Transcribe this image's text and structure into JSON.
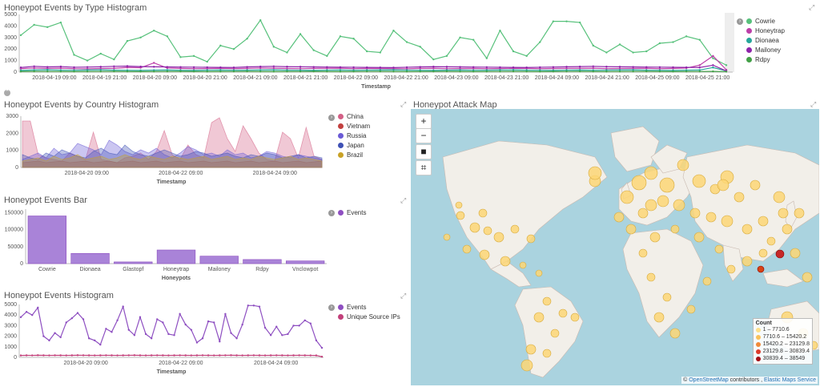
{
  "panels": {
    "type_hist": {
      "title": "Honeypot Events by Type Histogram",
      "xlabel": "Timestamp",
      "yticks": [
        "5000",
        "4000",
        "3000",
        "2000",
        "1000",
        "0"
      ],
      "xticks": [
        "2018-04-19 09:00",
        "2018-04-19 21:00",
        "2018-04-20 09:00",
        "2018-04-20 21:00",
        "2018-04-21 09:00",
        "2018-04-21 21:00",
        "2018-04-22 09:00",
        "2018-04-22 21:00",
        "2018-04-23 09:00",
        "2018-04-23 21:00",
        "2018-04-24 09:00",
        "2018-04-24 21:00",
        "2018-04-25 09:00",
        "2018-04-25 21:00"
      ],
      "legend": [
        {
          "label": "Cowrie",
          "color": "#57c17b"
        },
        {
          "label": "Honeytrap",
          "color": "#bc3ea8"
        },
        {
          "label": "Dionaea",
          "color": "#26a69a"
        },
        {
          "label": "Mailoney",
          "color": "#8e24aa"
        },
        {
          "label": "Rdpy",
          "color": "#43a047"
        }
      ]
    },
    "country_hist": {
      "title": "Honeypot Events by Country Histogram",
      "xlabel": "Timestamp",
      "yticks": [
        "3000",
        "2000",
        "1000",
        "0"
      ],
      "xticks": [
        "2018-04-20 09:00",
        "2018-04-22 09:00",
        "2018-04-24 09:00"
      ],
      "legend": [
        {
          "label": "China",
          "color": "#d36086"
        },
        {
          "label": "Vietnam",
          "color": "#c2403f"
        },
        {
          "label": "Russia",
          "color": "#6b5bd6"
        },
        {
          "label": "Japan",
          "color": "#3f51b5"
        },
        {
          "label": "Brazil",
          "color": "#c9a227"
        }
      ]
    },
    "events_bar": {
      "title": "Honeypot Events Bar",
      "xlabel": "Honeypots",
      "legend": [
        {
          "label": "Events",
          "color": "#8e4fc1"
        }
      ]
    },
    "events_hist": {
      "title": "Honeypot Events Histogram",
      "xlabel": "Timestamp",
      "yticks": [
        "5000",
        "4000",
        "3000",
        "2000",
        "1000",
        "0"
      ],
      "xticks": [
        "2018-04-20 09:00",
        "2018-04-22 09:00",
        "2018-04-24 09:00"
      ],
      "legend": [
        {
          "label": "Events",
          "color": "#8e4fc1"
        },
        {
          "label": "Unique Source IPs",
          "color": "#c2407a"
        }
      ]
    },
    "attack_map": {
      "title": "Honeypot Attack Map",
      "zoom_in": "+",
      "zoom_out": "−",
      "legend_title": "Count",
      "legend_items": [
        {
          "label": "1 – 7710.6",
          "color": "#fde08a"
        },
        {
          "label": "7710.6 – 15420.2",
          "color": "#f9c15a"
        },
        {
          "label": "15420.2 – 23129.8",
          "color": "#f08a3a"
        },
        {
          "label": "23129.8 – 30839.4",
          "color": "#dd3b2a"
        },
        {
          "label": "30839.4 – 38549",
          "color": "#a50f15"
        }
      ],
      "attribution_prefix": "©",
      "attribution_osm": "OpenStreetMap",
      "attribution_mid": "contributors ,",
      "attribution_ems": "Elastic Maps Service"
    }
  },
  "chart_data": [
    {
      "type": "bar",
      "title": "Honeypot Events Bar",
      "xlabel": "Honeypots",
      "categories": [
        "Cowrie",
        "Dionaea",
        "Glastopf",
        "Honeytrap",
        "Mailoney",
        "Rdpy",
        "Vnclowpot"
      ],
      "values": [
        140000,
        30000,
        5000,
        40000,
        22000,
        12000,
        8000
      ],
      "yticks": [
        "150000",
        "100000",
        "50000",
        "0"
      ],
      "ylim": [
        0,
        160000
      ],
      "series": [
        {
          "name": "Events",
          "values": [
            140000,
            30000,
            5000,
            40000,
            22000,
            12000,
            8000
          ]
        }
      ]
    },
    {
      "type": "line",
      "title": "Honeypot Events by Type Histogram",
      "series": [
        {
          "name": "Cowrie",
          "values": [
            3200,
            4100,
            3900,
            4300,
            1500,
            1000,
            1600,
            1100,
            2700,
            3000,
            3600,
            3100,
            1300,
            1400,
            900,
            2300,
            2000,
            2900,
            4500,
            2200,
            1700,
            3300,
            1900,
            1400,
            3100,
            2900,
            1800,
            1700,
            3600,
            2600,
            2200,
            1100,
            1400,
            3000,
            2800,
            1200,
            3600,
            1800,
            1400,
            2600,
            4400,
            4400,
            4300,
            2300,
            1700,
            2400,
            1700,
            1800,
            2500,
            2600,
            3100,
            2800,
            1200,
            600
          ]
        },
        {
          "name": "Honeytrap",
          "values": [
            300,
            350,
            320,
            340,
            300,
            290,
            310,
            330,
            400,
            380,
            800,
            350,
            320,
            300,
            310,
            330,
            300,
            320,
            350,
            340,
            310,
            300,
            320,
            330,
            340,
            300,
            320,
            310,
            300,
            290,
            320,
            330,
            300,
            310,
            320,
            300,
            310,
            330,
            320,
            300,
            310,
            320,
            330,
            340,
            300,
            310,
            320,
            330,
            300,
            320,
            350,
            600,
            1400,
            200
          ]
        },
        {
          "name": "Dionaea",
          "values": [
            150,
            180,
            200,
            170,
            160,
            180,
            190,
            170,
            160,
            150,
            170,
            180,
            160,
            150,
            170,
            180,
            160,
            170,
            180,
            190,
            170,
            160,
            150,
            170,
            180,
            160,
            170,
            180,
            190,
            170,
            160,
            150,
            170,
            180,
            160,
            170,
            180,
            190,
            170,
            160,
            150,
            170,
            180,
            160,
            170,
            180,
            190,
            170,
            160,
            150,
            170,
            180,
            400,
            100
          ]
        },
        {
          "name": "Mailoney",
          "values": [
            400,
            500,
            450,
            480,
            420,
            440,
            460,
            500,
            520,
            480,
            460,
            450,
            440,
            430,
            420,
            410,
            400,
            450,
            480,
            500,
            470,
            460,
            450,
            440,
            430,
            420,
            410,
            400,
            390,
            420,
            450,
            470,
            460,
            450,
            440,
            430,
            420,
            410,
            400,
            420,
            440,
            460,
            480,
            500,
            470,
            460,
            450,
            440,
            430,
            420,
            410,
            400,
            600,
            100
          ]
        },
        {
          "name": "Rdpy",
          "values": [
            50,
            60,
            55,
            50,
            45,
            50,
            55,
            60,
            50,
            45,
            50,
            55,
            60,
            50,
            45,
            50,
            55,
            60,
            50,
            45,
            50,
            55,
            60,
            50,
            45,
            50,
            55,
            60,
            50,
            45,
            50,
            55,
            60,
            50,
            45,
            50,
            55,
            60,
            50,
            45,
            50,
            55,
            60,
            50,
            45,
            50,
            55,
            60,
            50,
            45,
            50,
            55,
            60,
            40
          ]
        }
      ],
      "ylim": [
        0,
        5000
      ]
    },
    {
      "type": "line",
      "title": "Honeypot Events Histogram",
      "series": [
        {
          "name": "Events",
          "values": [
            3800,
            4300,
            4000,
            4700,
            2000,
            1600,
            2300,
            1900,
            3300,
            3700,
            4200,
            3600,
            1800,
            1600,
            1200,
            2700,
            2400,
            3500,
            4800,
            2600,
            2100,
            3800,
            2200,
            1800,
            3600,
            3300,
            2200,
            2100,
            4100,
            3100,
            2600,
            1400,
            1800,
            3400,
            3300,
            1500,
            4100,
            2300,
            1800,
            3100,
            4900,
            4900,
            4800,
            2800,
            2100,
            2900,
            2100,
            2200,
            3000,
            3000,
            3500,
            3200,
            1600,
            900
          ]
        },
        {
          "name": "Unique Source IPs",
          "values": [
            180,
            190,
            185,
            200,
            190,
            185,
            195,
            190,
            185,
            190,
            200,
            195,
            190,
            185,
            190,
            195,
            190,
            185,
            190,
            195,
            200,
            190,
            185,
            190,
            195,
            190,
            185,
            190,
            195,
            190,
            185,
            190,
            195,
            190,
            185,
            190,
            195,
            200,
            190,
            185,
            190,
            195,
            190,
            185,
            190,
            195,
            190,
            185,
            190,
            195,
            190,
            185,
            180,
            60
          ]
        }
      ],
      "ylim": [
        0,
        5000
      ]
    },
    {
      "type": "area",
      "title": "Honeypot Events by Country Histogram",
      "series": [
        {
          "name": "China",
          "values": [
            2900,
            2900,
            800,
            600,
            500,
            400,
            900,
            700,
            500,
            2200,
            500,
            400,
            300,
            600,
            700,
            900,
            500,
            1000,
            2300,
            800,
            500,
            1400,
            800,
            600,
            2800,
            3100,
            1800,
            1000,
            2600,
            1800,
            900,
            500,
            400,
            2200,
            1800,
            600,
            2500,
            700,
            500
          ]
        },
        {
          "name": "Vietnam",
          "values": [
            300,
            350,
            400,
            300,
            350,
            400,
            300,
            350,
            400,
            300,
            350,
            400,
            300,
            350,
            400,
            300,
            350,
            400,
            300,
            350,
            400,
            300,
            350,
            400,
            300,
            350,
            400,
            300,
            350,
            400,
            300,
            350,
            400,
            300,
            350,
            400,
            300,
            350,
            400
          ]
        },
        {
          "name": "Russia",
          "values": [
            500,
            700,
            900,
            600,
            1200,
            800,
            900,
            1500,
            1300,
            1100,
            800,
            1700,
            1400,
            1000,
            800,
            1100,
            900,
            1200,
            800,
            600,
            900,
            1300,
            1100,
            800,
            900,
            700,
            1100,
            800,
            900,
            600,
            700,
            1000,
            900,
            700,
            600,
            800,
            700,
            600,
            500
          ]
        },
        {
          "name": "Japan",
          "values": [
            800,
            600,
            500,
            900,
            700,
            1100,
            900,
            700,
            600,
            1000,
            1200,
            900,
            800,
            1400,
            1000,
            800,
            700,
            900,
            1100,
            900,
            700,
            800,
            1000,
            900,
            700,
            800,
            900,
            700,
            600,
            800,
            700,
            900,
            800,
            600,
            700,
            800,
            600,
            700,
            600
          ]
        },
        {
          "name": "Brazil",
          "values": [
            400,
            500,
            600,
            400,
            700,
            500,
            600,
            800,
            500,
            600,
            700,
            500,
            600,
            800,
            600,
            500,
            700,
            600,
            500,
            700,
            600,
            500,
            600,
            700,
            500,
            600,
            700,
            500,
            600,
            500,
            700,
            600,
            500,
            600,
            700,
            500,
            600,
            500,
            400
          ]
        }
      ],
      "ylim": [
        0,
        3200
      ]
    }
  ]
}
